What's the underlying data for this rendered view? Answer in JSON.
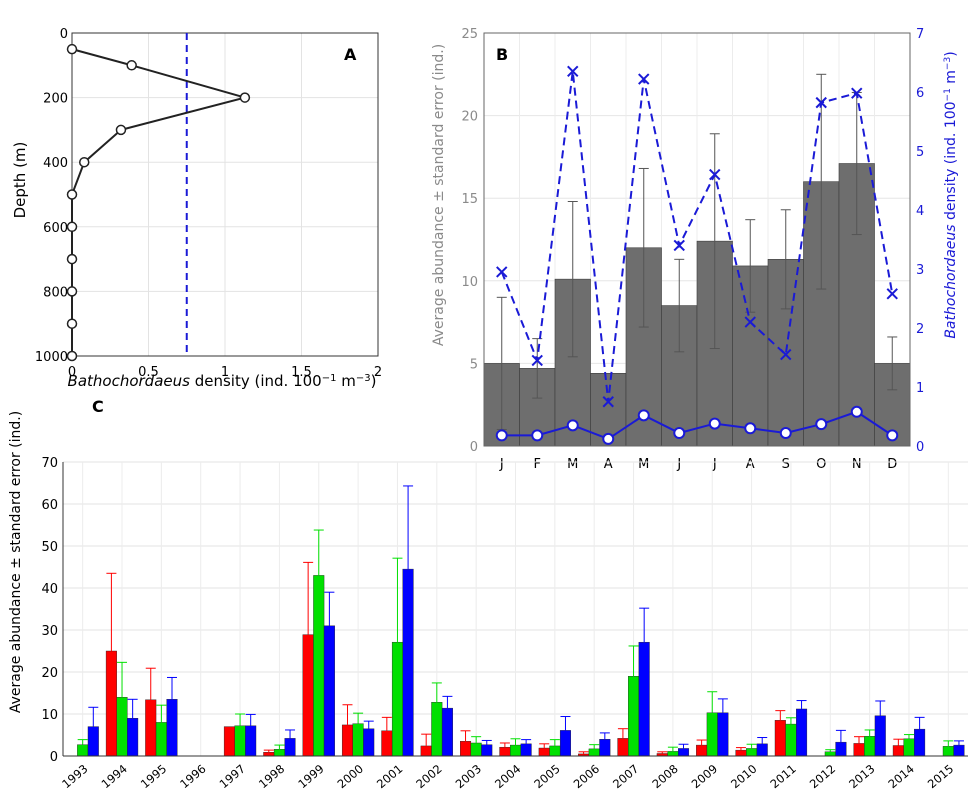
{
  "chart_data": [
    {
      "panel": "A",
      "type": "line",
      "xlabel_italic": "Bathochordaeus",
      "xlabel_rest": " density (ind. 100",
      "xlabel_sup1": "−1",
      "xlabel_m": " m",
      "xlabel_sup2": "−3",
      "xlabel_close": ")",
      "ylabel": "Depth (m)",
      "xlim": [
        0,
        2
      ],
      "ylim": [
        0,
        1000
      ],
      "y_reversed": true,
      "xticks": [
        "0",
        "0.5",
        "1",
        "1.5",
        "2"
      ],
      "yticks": [
        "0",
        "200",
        "400",
        "600",
        "800",
        "1000"
      ],
      "grid": true,
      "series": [
        {
          "style": "solid-line-open-circles",
          "color": "#222222",
          "points": [
            {
              "x": 0.0,
              "y": 50
            },
            {
              "x": 0.39,
              "y": 100
            },
            {
              "x": 1.13,
              "y": 200
            },
            {
              "x": 0.32,
              "y": 300
            },
            {
              "x": 0.08,
              "y": 400
            },
            {
              "x": 0.0,
              "y": 500
            },
            {
              "x": 0.0,
              "y": 600
            },
            {
              "x": 0.0,
              "y": 700
            },
            {
              "x": 0.0,
              "y": 800
            },
            {
              "x": 0.0,
              "y": 900
            },
            {
              "x": 0.0,
              "y": 1000
            }
          ]
        }
      ],
      "reference_line": {
        "x": 0.75,
        "color": "#1a1ad6",
        "style": "dashed"
      }
    },
    {
      "panel": "B",
      "type": "bar",
      "categories": [
        "J",
        "F",
        "M",
        "A",
        "M",
        "J",
        "J",
        "A",
        "S",
        "O",
        "N",
        "D"
      ],
      "ylabel_left": "Average abundance ± standard error (ind.)",
      "ylabel_right_italic": "Bathochordaeus",
      "ylabel_right_rest": " density (ind. 100",
      "ylabel_right_sup1": "−1",
      "ylabel_right_m": " m",
      "ylabel_right_sup2": "−3",
      "ylabel_right_close": ")",
      "ylim_left": [
        0,
        25
      ],
      "ylim_right": [
        0,
        7
      ],
      "yticks_left": [
        "0",
        "5",
        "10",
        "15",
        "20",
        "25"
      ],
      "yticks_right": [
        "0",
        "1",
        "2",
        "3",
        "4",
        "5",
        "6",
        "7"
      ],
      "grid": true,
      "bars": {
        "color": "#6e6e6e",
        "values": [
          5.0,
          4.7,
          10.1,
          4.4,
          12.0,
          8.5,
          12.4,
          10.9,
          11.3,
          16.0,
          17.1,
          5.0
        ],
        "errors": [
          4.0,
          1.8,
          4.7,
          0.0,
          4.8,
          2.8,
          6.5,
          2.8,
          3.0,
          6.5,
          4.3,
          1.6
        ]
      },
      "series": [
        {
          "axis": "right",
          "style": "dashed-x",
          "color": "#1a1ad6",
          "values": [
            2.95,
            1.45,
            6.35,
            0.75,
            6.22,
            3.4,
            4.6,
            2.1,
            1.55,
            5.82,
            5.98,
            2.58
          ]
        },
        {
          "axis": "right",
          "style": "solid-open-circles",
          "color": "#1a1ad6",
          "values": [
            0.18,
            0.18,
            0.35,
            0.12,
            0.52,
            0.22,
            0.38,
            0.3,
            0.22,
            0.37,
            0.58,
            0.18
          ]
        }
      ]
    },
    {
      "panel": "C",
      "type": "bar",
      "categories": [
        "1993",
        "1994",
        "1995",
        "1996",
        "1997",
        "1998",
        "1999",
        "2000",
        "2001",
        "2002",
        "2003",
        "2004",
        "2005",
        "2006",
        "2007",
        "2008",
        "2009",
        "2010",
        "2011",
        "2012",
        "2013",
        "2014",
        "2015"
      ],
      "ylabel": "Average abundance ± standard error (ind.)",
      "ylim": [
        0,
        70
      ],
      "yticks": [
        "0",
        "10",
        "20",
        "30",
        "40",
        "50",
        "60",
        "70"
      ],
      "grid": true,
      "series": [
        {
          "color": "#ff0000",
          "values": [
            0,
            25,
            13.4,
            0,
            7,
            0.9,
            28.9,
            7.4,
            6.0,
            2.4,
            3.5,
            2.1,
            1.9,
            0.5,
            4.2,
            0.6,
            2.6,
            1.4,
            8.5,
            0,
            3.0,
            2.5,
            0
          ],
          "errors": [
            0,
            18.5,
            7.5,
            0,
            0,
            0.5,
            17.2,
            4.8,
            3.2,
            2.8,
            2.5,
            1.0,
            1.0,
            0.5,
            2.3,
            0.4,
            1.2,
            0.6,
            2.3,
            0,
            1.6,
            1.5,
            0
          ]
        },
        {
          "color": "#00e000",
          "values": [
            2.7,
            14,
            8.0,
            0,
            7.2,
            1.6,
            43,
            7.7,
            27.1,
            12.8,
            3.1,
            2.6,
            2.4,
            1.7,
            19,
            1.1,
            10.3,
            1.8,
            7.6,
            1.0,
            4.7,
            4.1,
            2.3
          ],
          "errors": [
            1.2,
            8.3,
            4.1,
            0,
            2.8,
            1.0,
            10.8,
            2.5,
            20.0,
            4.6,
            1.5,
            1.5,
            1.5,
            1.0,
            7.2,
            1.0,
            5.0,
            1.0,
            1.5,
            0.5,
            1.5,
            1.0,
            1.3
          ]
        },
        {
          "color": "#0000ff",
          "values": [
            7.0,
            9.0,
            13.5,
            0,
            7.2,
            4.2,
            31,
            6.5,
            44.5,
            11.4,
            2.7,
            2.9,
            6.1,
            4.0,
            27.1,
            1.8,
            10.3,
            2.9,
            11.2,
            3.3,
            9.6,
            6.4,
            2.6
          ],
          "errors": [
            4.6,
            4.5,
            5.2,
            0,
            2.7,
            2.0,
            8.0,
            1.8,
            19.8,
            2.8,
            1.0,
            1.0,
            3.3,
            1.5,
            8.1,
            1.0,
            3.3,
            1.5,
            2.0,
            2.8,
            3.5,
            2.8,
            1.0
          ]
        }
      ]
    }
  ]
}
